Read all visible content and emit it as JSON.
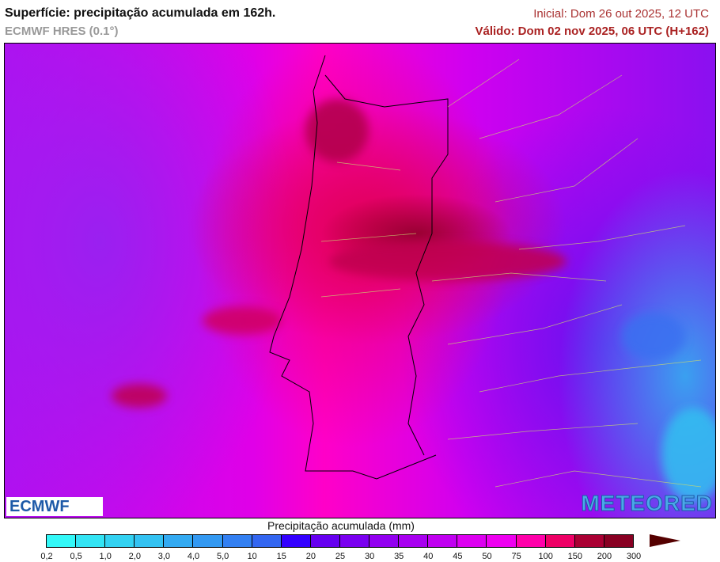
{
  "header": {
    "title": "Superfície: precipitação acumulada em 162h.",
    "model": "ECMWF HRES (0.1°)",
    "initial": "Inicial: Dom 26 out 2025, 12 UTC",
    "valid": "Válido: Dom 02 nov 2025, 06 UTC (H+162)"
  },
  "logos": {
    "left": "ECMWF",
    "right": "METEORED"
  },
  "colorbar": {
    "title": "Precipitação acumulada (mm)",
    "ticks": [
      "0,2",
      "0,5",
      "1,0",
      "2,0",
      "3,0",
      "4,0",
      "5,0",
      "10",
      "15",
      "20",
      "25",
      "30",
      "35",
      "40",
      "45",
      "50",
      "75",
      "100",
      "150",
      "200",
      "300"
    ],
    "colors": [
      "#33f8f8",
      "#33e4f4",
      "#33d2f2",
      "#33c2f2",
      "#33aaf2",
      "#3399f2",
      "#3380f2",
      "#3366f0",
      "#3300ff",
      "#6600f0",
      "#7a00f0",
      "#9200f0",
      "#a800f0",
      "#c000f0",
      "#dc00f0",
      "#ee00f0",
      "#ff00aa",
      "#ee0066",
      "#aa0033",
      "#880022"
    ],
    "overflow_color": "#550000"
  }
}
